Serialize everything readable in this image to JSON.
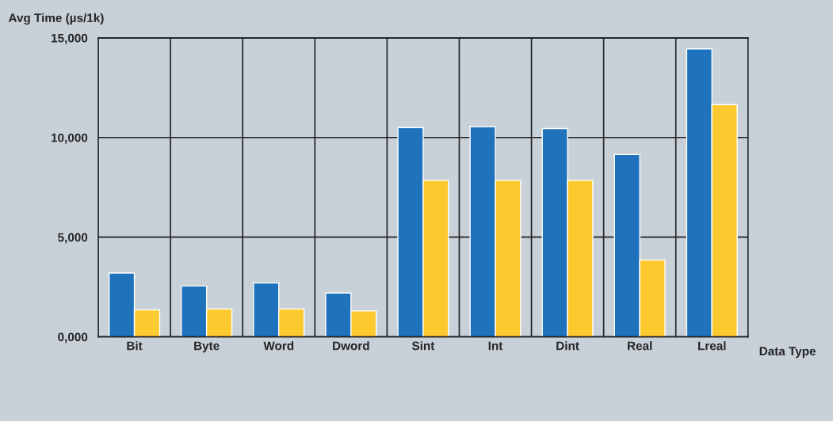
{
  "chart_data": {
    "type": "bar",
    "xlabel": "Data Type",
    "ylabel": "Avg Time (µs/1k)",
    "categories": [
      "Bit",
      "Byte",
      "Word",
      "Dword",
      "Sint",
      "Int",
      "Dint",
      "Real",
      "Lreal"
    ],
    "series": [
      {
        "color": "#1f72bc",
        "values": [
          3200,
          2550,
          2700,
          2200,
          10500,
          10550,
          10450,
          9150,
          14450
        ]
      },
      {
        "color": "#fcc92e",
        "values": [
          1350,
          1400,
          1400,
          1300,
          7850,
          7850,
          7850,
          3850,
          11650
        ]
      }
    ],
    "ylim": [
      0,
      15000
    ],
    "yticks": [
      {
        "value": 0,
        "label": "0,000"
      },
      {
        "value": 5000,
        "label": "5,000"
      },
      {
        "value": 10000,
        "label": "10,000"
      },
      {
        "value": 15000,
        "label": "15,000"
      }
    ],
    "grid": true
  }
}
